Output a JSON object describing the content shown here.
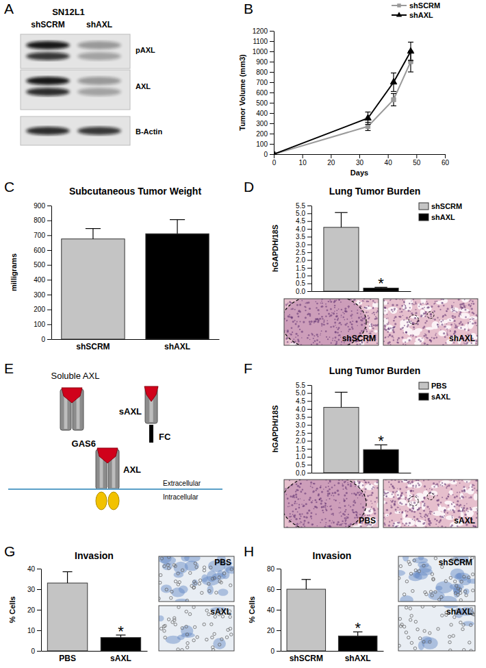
{
  "blot": {
    "panel": "A",
    "header": "SN12L1",
    "lanes": [
      "shSCRM",
      "shAXL"
    ],
    "bands": [
      "pAXL",
      "AXL",
      "B-Actin"
    ]
  },
  "diagram": {
    "panel": "E",
    "title": "Soluble AXL",
    "labels": {
      "soluble": "sAXL",
      "fc": "FC",
      "ligand": "GAS6",
      "receptor": "AXL",
      "outside": "Extracellular",
      "inside": "Intracellular"
    }
  },
  "chart_data": [
    {
      "panel": "B",
      "type": "line",
      "y_label": "Tumor Volume (mm3)",
      "x_label": "Days",
      "x": [
        0,
        33,
        42,
        48
      ],
      "xlim": [
        0,
        60
      ],
      "xticks": [
        0,
        10,
        20,
        30,
        40,
        50,
        60
      ],
      "ylim": [
        0,
        1200
      ],
      "yticks": [
        0,
        100,
        200,
        300,
        400,
        500,
        600,
        700,
        800,
        900,
        1000,
        1100,
        1200
      ],
      "legend": "upper right",
      "series": [
        {
          "name": "shSCRM",
          "color": "#9a9a9a",
          "marker": "square",
          "values": [
            0,
            270,
            530,
            900
          ],
          "errors": [
            0,
            40,
            60,
            100
          ]
        },
        {
          "name": "shAXL",
          "color": "#000000",
          "marker": "triangle",
          "values": [
            0,
            350,
            700,
            1000
          ],
          "errors": [
            0,
            60,
            90,
            90
          ]
        }
      ]
    },
    {
      "panel": "C",
      "type": "bar",
      "title": "Subcutaneous Tumor Weight",
      "y_label": "milligrams",
      "categories": [
        "shSCRM",
        "shAXL"
      ],
      "values": [
        675,
        710
      ],
      "errors": [
        70,
        95
      ],
      "colors": [
        "#c4c4c4",
        "#000000"
      ],
      "ylim": [
        0,
        900
      ],
      "yticks": [
        0,
        100,
        200,
        300,
        400,
        500,
        600,
        700,
        800,
        900
      ]
    },
    {
      "panel": "D",
      "type": "bar",
      "title": "Lung Tumor Burden",
      "y_label": "hGAPDH/18S",
      "categories": [
        null
      ],
      "series": [
        {
          "name": "shSCRM",
          "color": "#c4c4c4",
          "values": [
            4.1
          ],
          "errors": [
            0.95
          ]
        },
        {
          "name": "shAXL",
          "color": "#000000",
          "values": [
            0.2
          ],
          "errors": [
            0.05
          ],
          "annotation": "*"
        }
      ],
      "ylim": [
        0,
        5.5
      ],
      "yticks": [
        {
          "value": 0,
          "label": "0.0"
        },
        0.5,
        {
          "value": 1,
          "label": "1.0"
        },
        1.5,
        {
          "value": 2,
          "label": "2.0"
        },
        2.5,
        {
          "value": 3,
          "label": "3.0"
        },
        3.5,
        {
          "value": 4,
          "label": "4.0"
        },
        4.5,
        {
          "value": 5,
          "label": "5.0"
        },
        5.5
      ],
      "legend": "upper right",
      "tick_labels": "y",
      "images": [
        "shSCRM",
        "shAXL"
      ]
    },
    {
      "panel": "F",
      "type": "bar",
      "title": "Lung Tumor Burden",
      "y_label": "hGAPDH/18S",
      "categories": [
        null
      ],
      "series": [
        {
          "name": "PBS",
          "color": "#c4c4c4",
          "values": [
            4.1
          ],
          "errors": [
            0.95
          ]
        },
        {
          "name": "sAXL",
          "color": "#000000",
          "values": [
            1.45
          ],
          "errors": [
            0.3
          ],
          "annotation": "*"
        }
      ],
      "ylim": [
        0,
        5.5
      ],
      "yticks": [
        {
          "value": 0,
          "label": "0.0"
        },
        0.5,
        {
          "value": 1,
          "label": "1.0"
        },
        1.5,
        {
          "value": 2,
          "label": "2.0"
        },
        2.5,
        {
          "value": 3,
          "label": "3.0"
        },
        3.5,
        {
          "value": 4,
          "label": "4.0"
        },
        4.5,
        {
          "value": 5,
          "label": "5.0"
        },
        5.5
      ],
      "legend": "upper right",
      "tick_labels": "y",
      "images": [
        "PBS",
        "sAXL"
      ]
    },
    {
      "panel": "G",
      "type": "bar",
      "title": "Invasion",
      "y_label": "% Cells",
      "categories": [
        "PBS",
        "sAXL"
      ],
      "values": [
        33,
        6.5
      ],
      "errors": [
        5.5,
        1.2
      ],
      "annotations": [
        null,
        "*"
      ],
      "colors": [
        "#c4c4c4",
        "#000000"
      ],
      "ylim": [
        0,
        40
      ],
      "yticks": [
        0,
        10,
        20,
        30,
        40
      ],
      "images": [
        "PBS",
        "sAXL"
      ]
    },
    {
      "panel": "H",
      "type": "bar",
      "title": "Invasion",
      "y_label": "% Cells",
      "categories": [
        "shSCRM",
        "shAXL"
      ],
      "values": [
        60,
        14.5
      ],
      "errors": [
        9.5,
        4
      ],
      "annotations": [
        null,
        "*"
      ],
      "colors": [
        "#c4c4c4",
        "#000000"
      ],
      "ylim": [
        0,
        80
      ],
      "yticks": [
        0,
        20,
        40,
        60,
        80
      ],
      "images": [
        "shSCRM",
        "shAXL"
      ]
    }
  ]
}
